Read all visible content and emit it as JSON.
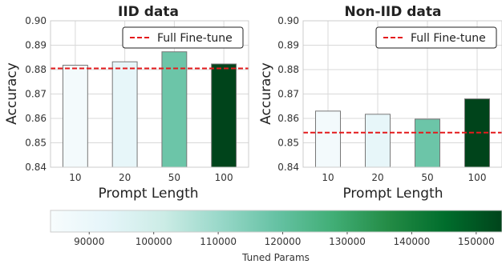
{
  "colors": {
    "reference_line": "#e41a1c",
    "bar_edge": "#777777",
    "grid": "#d9d9d9",
    "frame": "#cccccc",
    "cmap": [
      "#f7fcfd",
      "#e5f5f9",
      "#ccece6",
      "#99d8c9",
      "#66c2a4",
      "#41ae76",
      "#238b45",
      "#006d2c",
      "#00441b"
    ]
  },
  "chart_data": [
    {
      "type": "bar",
      "title": "IID data",
      "xlabel": "Prompt Length",
      "ylabel": "Accuracy",
      "categories": [
        "10",
        "20",
        "50",
        "100"
      ],
      "values": [
        0.8818,
        0.8832,
        0.8873,
        0.8823
      ],
      "tuned_params": [
        86000,
        92000,
        118000,
        154000
      ],
      "ylim": [
        0.84,
        0.9
      ],
      "yticks": [
        "0.84",
        "0.85",
        "0.86",
        "0.87",
        "0.88",
        "0.89",
        "0.90"
      ],
      "reference": {
        "label": "Full Fine-tune",
        "value": 0.8805
      },
      "grid": true,
      "legend": "top-right"
    },
    {
      "type": "bar",
      "title": "Non-IID data",
      "xlabel": "Prompt Length",
      "ylabel": "Accuracy",
      "categories": [
        "10",
        "20",
        "50",
        "100"
      ],
      "values": [
        0.863,
        0.8617,
        0.8597,
        0.868
      ],
      "tuned_params": [
        86000,
        92000,
        118000,
        154000
      ],
      "ylim": [
        0.84,
        0.9
      ],
      "yticks": [
        "0.84",
        "0.85",
        "0.86",
        "0.87",
        "0.88",
        "0.89",
        "0.90"
      ],
      "reference": {
        "label": "Full Fine-tune",
        "value": 0.8542
      },
      "grid": true,
      "legend": "top-right"
    }
  ],
  "colorbar": {
    "label": "Tuned Params",
    "range": [
      84000,
      154000
    ],
    "ticks": [
      "90000",
      "100000",
      "110000",
      "120000",
      "130000",
      "140000",
      "150000"
    ]
  }
}
